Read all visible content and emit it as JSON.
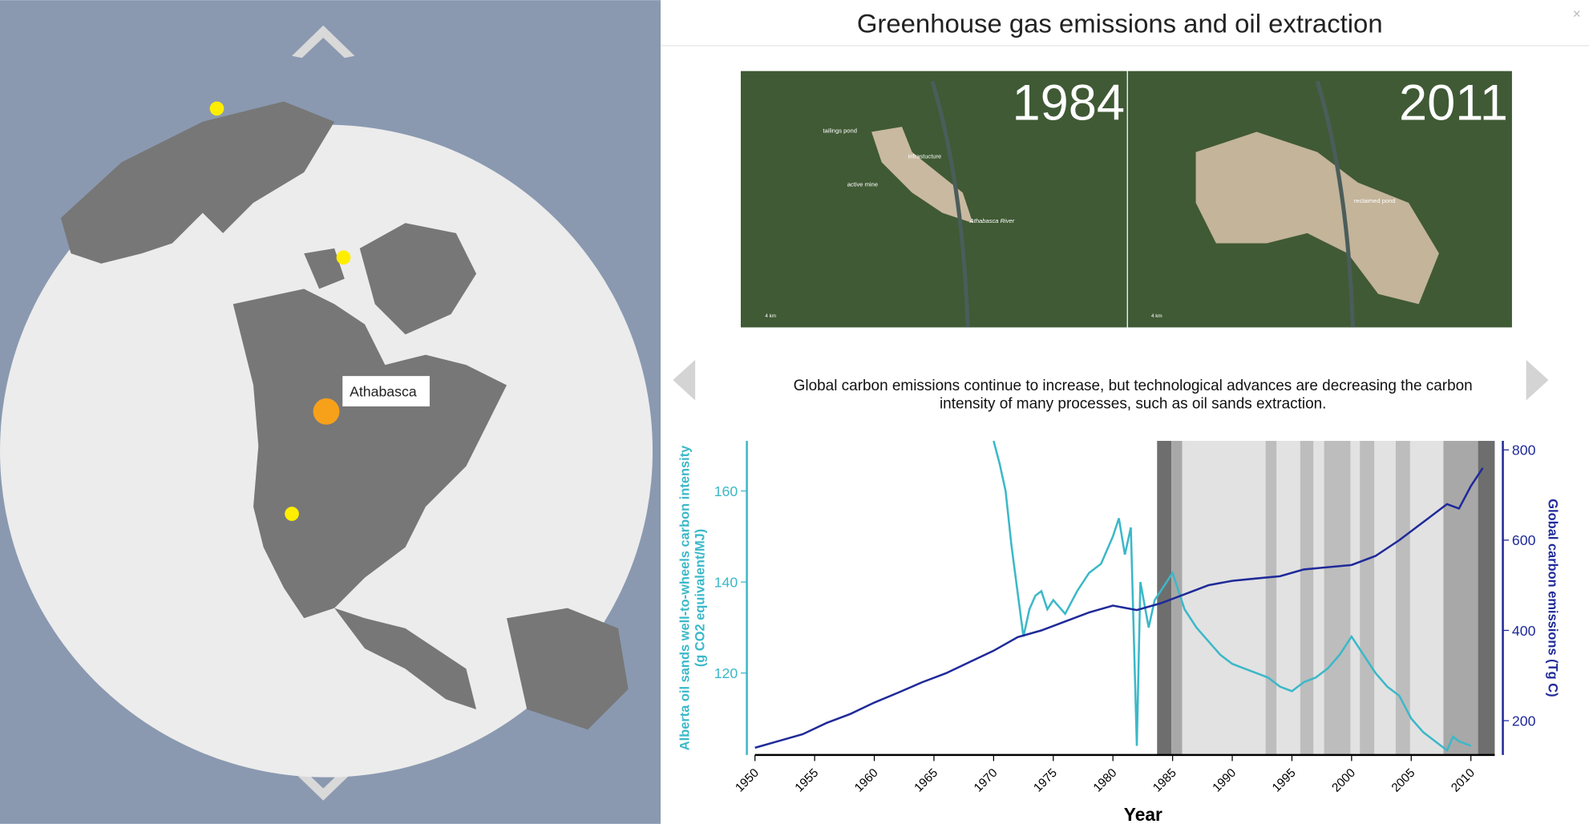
{
  "ui": {
    "title": "Greenhouse gas emissions and oil extraction",
    "close": "×",
    "tooltip": "Athabasca",
    "images": [
      {
        "year": "1984",
        "notes": [
          "tailings pond",
          "infrastucture",
          "active mine",
          "Athabasca River",
          "4 km"
        ]
      },
      {
        "year": "2011",
        "notes": [
          "reclaimed pond",
          "4 km"
        ]
      }
    ]
  },
  "chart_data": {
    "type": "line",
    "caption": [
      "Global carbon emissions continue to increase, but technological advances are decreasing the carbon",
      "intensity of many processes, such as oil sands extraction."
    ],
    "xlabel": "Year",
    "ylabel": [
      "Alberta oil sands well-to-wheels carbon intensity",
      "(g CO2 equivalent/MJ)"
    ],
    "y2label": "Global carbon emissions (Tg C)",
    "xlim": [
      1950,
      2012
    ],
    "xticks": [
      1950,
      1955,
      1960,
      1965,
      1970,
      1975,
      1980,
      1985,
      1990,
      1995,
      2000,
      2005,
      2010
    ],
    "ylim": [
      102,
      171
    ],
    "yticks": [
      120,
      140,
      160
    ],
    "y2lim": [
      124,
      820
    ],
    "y2ticks": [
      200,
      400,
      600,
      800
    ],
    "bands": [
      {
        "start": 1983.7,
        "end": 1984.9,
        "color": "#6e6e6e"
      },
      {
        "start": 1984.9,
        "end": 1985.8,
        "color": "#a8a8a8"
      },
      {
        "start": 1985.8,
        "end": 2007.7,
        "color": "#e2e2e2"
      },
      {
        "start": 1992.8,
        "end": 1993.7,
        "color": "#bdbdbd"
      },
      {
        "start": 1995.7,
        "end": 1996.8,
        "color": "#bdbdbd"
      },
      {
        "start": 1997.7,
        "end": 1999.9,
        "color": "#bdbdbd"
      },
      {
        "start": 2000.7,
        "end": 2001.9,
        "color": "#bdbdbd"
      },
      {
        "start": 2003.7,
        "end": 2004.9,
        "color": "#bdbdbd"
      },
      {
        "start": 2007.7,
        "end": 2010.6,
        "color": "#a8a8a8"
      },
      {
        "start": 2010.6,
        "end": 2012,
        "color": "#6e6e6e"
      }
    ],
    "series": [
      {
        "name": "Alberta oil sands well-to-wheels carbon intensity",
        "color": "#3bb8c8",
        "axis": "y",
        "x": [
          1970,
          1970.5,
          1971,
          1971.5,
          1972,
          1972.5,
          1973,
          1973.5,
          1974,
          1974.5,
          1975,
          1976,
          1977,
          1978,
          1979,
          1980,
          1980.5,
          1981,
          1981.5,
          1982,
          1982.3,
          1983,
          1983.5,
          1984,
          1985,
          1986,
          1987,
          1988,
          1989,
          1990,
          1991,
          1992,
          1993,
          1994,
          1995,
          1996,
          1997,
          1998,
          1999,
          2000,
          2001,
          2002,
          2003,
          2004,
          2005,
          2006,
          2007,
          2008,
          2008.5,
          2009,
          2010
        ],
        "values": [
          171,
          166,
          160,
          148,
          138,
          128,
          134,
          137,
          138,
          134,
          136,
          133,
          138,
          142,
          144,
          150,
          154,
          146,
          152,
          104,
          140,
          130,
          136,
          138,
          142,
          134,
          130,
          127,
          124,
          122,
          121,
          120,
          119,
          117,
          116,
          118,
          119,
          121,
          124,
          128,
          124,
          120,
          117,
          115,
          110,
          107,
          105,
          103,
          106,
          105,
          104
        ]
      },
      {
        "name": "Global carbon emissions",
        "color": "#1f2a99",
        "axis": "y2",
        "x": [
          1950,
          1952,
          1954,
          1956,
          1958,
          1960,
          1962,
          1964,
          1966,
          1968,
          1970,
          1972,
          1974,
          1976,
          1978,
          1980,
          1982,
          1984,
          1986,
          1988,
          1990,
          1992,
          1994,
          1996,
          1998,
          2000,
          2002,
          2004,
          2006,
          2008,
          2009,
          2010,
          2011
        ],
        "values": [
          140,
          155,
          170,
          195,
          215,
          240,
          262,
          285,
          305,
          330,
          355,
          385,
          400,
          420,
          440,
          455,
          445,
          460,
          480,
          500,
          510,
          515,
          520,
          535,
          540,
          545,
          565,
          600,
          640,
          680,
          670,
          720,
          760
        ]
      }
    ]
  }
}
